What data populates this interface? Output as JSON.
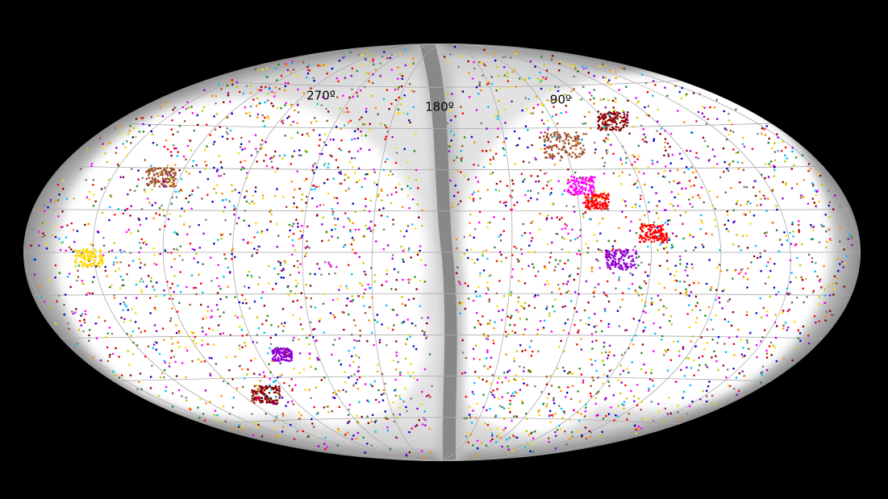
{
  "longitude_labels": [
    "270º",
    "180º",
    "90º"
  ]
}
